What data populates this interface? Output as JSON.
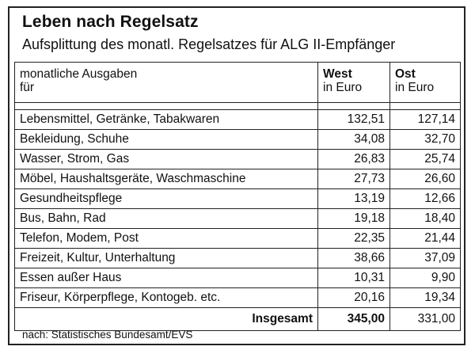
{
  "title": "Leben nach Regelsatz",
  "subtitle": "Aufsplittung des monatl. Regelsatzes für ALG II-Empfänger",
  "header": {
    "label_line1": "monatliche Ausgaben",
    "label_line2": "für",
    "west_line1": "West",
    "west_line2": "in Euro",
    "ost_line1": "Ost",
    "ost_line2": "in Euro"
  },
  "rows": [
    {
      "label": "Lebensmittel, Getränke, Tabakwaren",
      "west": "132,51",
      "ost": "127,14"
    },
    {
      "label": "Bekleidung, Schuhe",
      "west": "34,08",
      "ost": "32,70"
    },
    {
      "label": "Wasser, Strom, Gas",
      "west": "26,83",
      "ost": "25,74"
    },
    {
      "label": "Möbel, Haushaltsgeräte, Waschmaschine",
      "west": "27,73",
      "ost": "26,60"
    },
    {
      "label": "Gesundheitspflege",
      "west": "13,19",
      "ost": "12,66"
    },
    {
      "label": "Bus, Bahn, Rad",
      "west": "19,18",
      "ost": "18,40"
    },
    {
      "label": "Telefon, Modem, Post",
      "west": "22,35",
      "ost": "21,44"
    },
    {
      "label": "Freizeit, Kultur, Unterhaltung",
      "west": "38,66",
      "ost": "37,09"
    },
    {
      "label": "Essen außer Haus",
      "west": "10,31",
      "ost": "9,90"
    },
    {
      "label": "Friseur, Körperpflege, Kontogeb. etc.",
      "west": "20,16",
      "ost": "19,34"
    }
  ],
  "total": {
    "label": "Insgesamt",
    "west": "345,00",
    "ost": "331,00"
  },
  "source": "nach: Statistisches Bundesamt/EVS"
}
